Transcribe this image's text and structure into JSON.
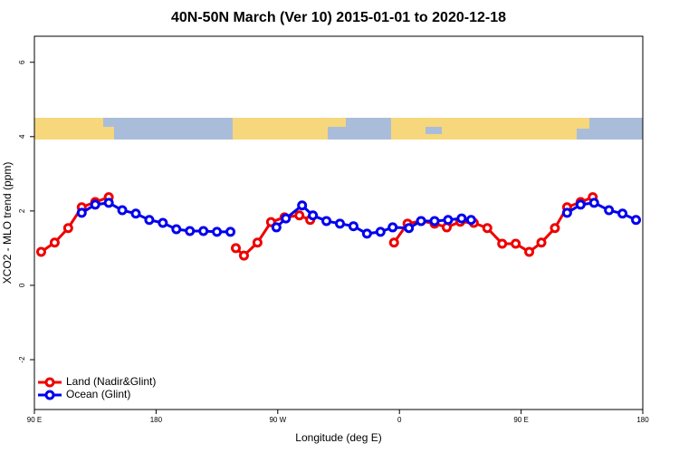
{
  "chart_data": {
    "type": "line",
    "title": "40N-50N March (Ver 10)   2015-01-01 to 2020-12-18",
    "x_label": "Longitude (deg E)",
    "y_label": "XCO2 - MLO trend (ppm)",
    "xlim": [
      90,
      540
    ],
    "xticks": [
      {
        "value": 90,
        "label": "90 E"
      },
      {
        "value": 180,
        "label": "180"
      },
      {
        "value": 270,
        "label": "90 W"
      },
      {
        "value": 360,
        "label": "0"
      },
      {
        "value": 450,
        "label": "90 E"
      },
      {
        "value": 540,
        "label": "180"
      }
    ],
    "ylim": [
      -3.34,
      6.7
    ],
    "yticks": [
      -2,
      0,
      2,
      4,
      6
    ],
    "legend": "bottomleft",
    "series": [
      {
        "name": "Land (Nadir&Glint)",
        "color": "#ee0000",
        "x": [
          95,
          105,
          115,
          125,
          135,
          145,
          null,
          239,
          245,
          255,
          265,
          275,
          286,
          294,
          null,
          356,
          366,
          376,
          386,
          395,
          405,
          415,
          425,
          436,
          446,
          456,
          465,
          475,
          484,
          494,
          503
        ],
        "values": [
          0.9,
          1.15,
          1.54,
          2.1,
          2.24,
          2.37,
          null,
          1.0,
          0.8,
          1.15,
          1.7,
          1.83,
          1.88,
          1.76,
          null,
          1.15,
          1.66,
          1.73,
          1.66,
          1.56,
          1.71,
          1.68,
          1.54,
          1.12,
          1.12,
          0.9,
          1.15,
          1.54,
          2.1,
          2.24,
          2.37
        ]
      },
      {
        "name": "Ocean (Glint)",
        "color": "#0000ee",
        "x": [
          125,
          135,
          145,
          155,
          165,
          175,
          185,
          195,
          205,
          215,
          225,
          235,
          null,
          269,
          276,
          288,
          296,
          306,
          316,
          326,
          336,
          346,
          355,
          367,
          376,
          386,
          396,
          406,
          413,
          null,
          484,
          494,
          504,
          515,
          525,
          535
        ],
        "values": [
          1.95,
          2.17,
          2.22,
          2.02,
          1.93,
          1.76,
          1.68,
          1.51,
          1.46,
          1.46,
          1.44,
          1.44,
          null,
          1.56,
          1.8,
          2.15,
          1.88,
          1.73,
          1.66,
          1.59,
          1.39,
          1.44,
          1.56,
          1.54,
          1.73,
          1.73,
          1.76,
          1.8,
          1.76,
          null,
          1.95,
          2.17,
          2.22,
          2.02,
          1.93,
          1.76
        ]
      }
    ]
  }
}
